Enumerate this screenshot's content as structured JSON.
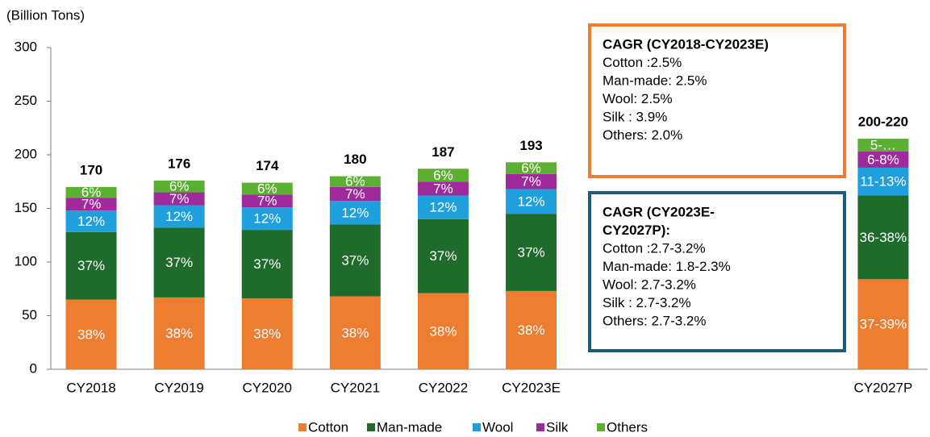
{
  "chart_data": {
    "type": "stacked_bar",
    "y_axis_label": "(Billion Tons)",
    "categories": [
      "CY2018",
      "CY2019",
      "CY2020",
      "CY2021",
      "CY2022",
      "CY2023E",
      null,
      null,
      null,
      "CY2027P"
    ],
    "ylim": [
      0,
      300
    ],
    "yticks": [
      0,
      50,
      100,
      150,
      200,
      250,
      300
    ],
    "series": [
      {
        "name": "Cotton",
        "color": "#ed7d31",
        "values": [
          65,
          67,
          66,
          68,
          71,
          73,
          null,
          null,
          null,
          84
        ],
        "share_labels": [
          "38%",
          "38%",
          "38%",
          "38%",
          "38%",
          "38%",
          null,
          null,
          null,
          "37-39%"
        ]
      },
      {
        "name": "Man-made",
        "color": "#1e6b2c",
        "values": [
          63,
          65,
          64,
          67,
          69,
          72,
          null,
          null,
          null,
          78
        ],
        "share_labels": [
          "37%",
          "37%",
          "37%",
          "37%",
          "37%",
          "37%",
          null,
          null,
          null,
          "36-38%"
        ]
      },
      {
        "name": "Wool",
        "color": "#1fa0dc",
        "values": [
          20,
          21,
          21,
          22,
          22,
          23,
          null,
          null,
          null,
          26
        ],
        "share_labels": [
          "12%",
          "12%",
          "12%",
          "12%",
          "12%",
          "12%",
          null,
          null,
          null,
          "11-13%"
        ]
      },
      {
        "name": "Silk",
        "color": "#9e2a9c",
        "values": [
          12,
          12,
          12,
          13,
          13,
          14,
          null,
          null,
          null,
          15
        ],
        "share_labels": [
          "7%",
          "7%",
          "7%",
          "7%",
          "7%",
          "7%",
          null,
          null,
          null,
          "6-8%"
        ]
      },
      {
        "name": "Others",
        "color": "#5bb032",
        "values": [
          10,
          11,
          11,
          10,
          12,
          11,
          null,
          null,
          null,
          12
        ],
        "share_labels": [
          "6%",
          "6%",
          "6%",
          "6%",
          "6%",
          "6%",
          null,
          null,
          null,
          "5-…"
        ]
      }
    ],
    "total_labels": [
      "170",
      "176",
      "174",
      "180",
      "187",
      "193",
      null,
      null,
      null,
      "200-220"
    ],
    "legend": "bottom",
    "annotations": [
      {
        "title": [
          "CAGR (CY2018-CY2023E)"
        ],
        "color": "#ed7d31",
        "lines": [
          "Cotton :2.5%",
          "Man-made: 2.5%",
          "Wool: 2.5%",
          "Silk : 3.9%",
          "Others: 2.0%"
        ]
      },
      {
        "title": [
          "CAGR (CY2023E-",
          "CY2027P):"
        ],
        "color": "#1f5c78",
        "lines": [
          "Cotton :2.7-3.2%",
          "Man-made: 1.8-2.3%",
          "Wool: 2.7-3.2%",
          "Silk : 2.7-3.2%",
          "Others: 2.7-3.2%"
        ]
      }
    ]
  }
}
